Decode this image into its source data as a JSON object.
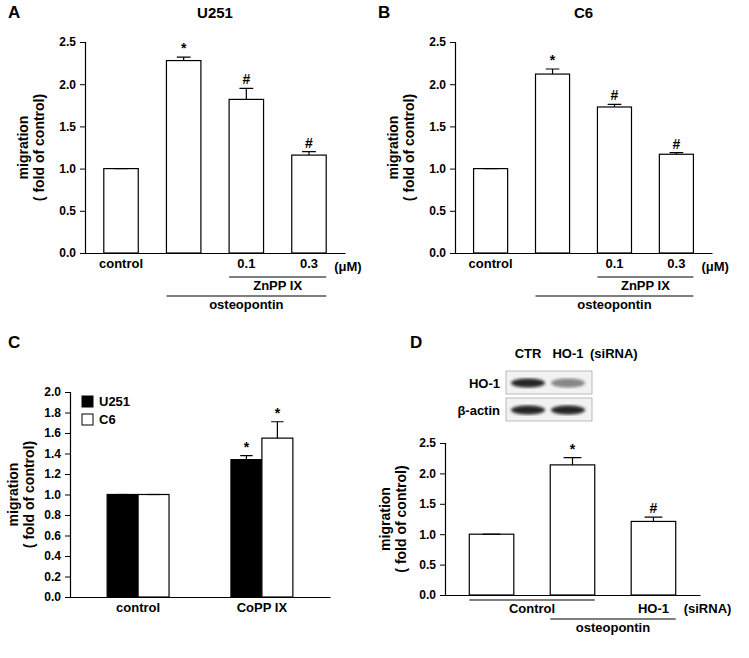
{
  "chart_data": [
    {
      "panel": "A",
      "type": "bar",
      "title": "U251",
      "ylabel": [
        "migration",
        "( fold of control)"
      ],
      "categories": [
        "control",
        null,
        "0.1",
        "0.3"
      ],
      "values": [
        1.0,
        2.28,
        1.82,
        1.16
      ],
      "errors": [
        0,
        0.04,
        0.13,
        0.04
      ],
      "significance": [
        null,
        "*",
        "#",
        "#"
      ],
      "color": "#ffffff",
      "ylim": [
        0,
        2.5
      ],
      "yticks": [
        {
          "value": 0,
          "label": "0.0"
        },
        0.5,
        {
          "value": 1,
          "label": "1.0"
        },
        1.5,
        {
          "value": 2,
          "label": "2.0"
        },
        2.5
      ],
      "groups": [
        [
          {
            "label": "ZnPP IX",
            "from": 2,
            "to": 3
          }
        ],
        [
          {
            "label": "osteopontin",
            "from": 1,
            "to": 3
          }
        ]
      ],
      "unit": "(μM)"
    },
    {
      "panel": "B",
      "type": "bar",
      "title": "C6",
      "ylabel": [
        "migration",
        "( fold of control)"
      ],
      "categories": [
        "control",
        null,
        "0.1",
        "0.3"
      ],
      "values": [
        1.0,
        2.12,
        1.73,
        1.17
      ],
      "errors": [
        0,
        0.06,
        0.03,
        0.02
      ],
      "significance": [
        null,
        "*",
        "#",
        "#"
      ],
      "color": "#ffffff",
      "ylim": [
        0,
        2.5
      ],
      "yticks": [
        {
          "value": 0,
          "label": "0.0"
        },
        0.5,
        {
          "value": 1,
          "label": "1.0"
        },
        1.5,
        {
          "value": 2,
          "label": "2.0"
        },
        2.5
      ],
      "groups": [
        [
          {
            "label": "ZnPP IX",
            "from": 2,
            "to": 3
          }
        ],
        [
          {
            "label": "osteopontin",
            "from": 1,
            "to": 3
          }
        ]
      ],
      "unit": "(μM)"
    },
    {
      "panel": "C",
      "type": "bar",
      "ylabel": [
        "migration",
        "( fold of control)"
      ],
      "categories": [
        "control",
        "CoPP IX"
      ],
      "series": [
        {
          "name": "U251",
          "color": "#000000",
          "values": [
            1.0,
            1.34
          ],
          "errors": [
            0,
            0.04
          ],
          "significance": [
            null,
            "*"
          ]
        },
        {
          "name": "C6",
          "color": "#ffffff",
          "values": [
            1.0,
            1.55
          ],
          "errors": [
            0,
            0.16
          ],
          "significance": [
            null,
            "*"
          ]
        }
      ],
      "ylim": [
        0,
        2.0
      ],
      "yticks": [
        {
          "value": 0,
          "label": "0.0"
        },
        0.2,
        0.4,
        0.6,
        0.8,
        {
          "value": 1,
          "label": "1.0"
        },
        1.2,
        1.4,
        1.6,
        1.8,
        {
          "value": 2,
          "label": "2.0"
        }
      ],
      "legend": "top-left"
    },
    {
      "panel": "D",
      "type": "bar",
      "ylabel": [
        "migration",
        "( fold of control)"
      ],
      "categories": [
        null,
        null,
        null
      ],
      "values": [
        1.0,
        2.14,
        1.21
      ],
      "errors": [
        0,
        0.12,
        0.07
      ],
      "significance": [
        null,
        "*",
        "#"
      ],
      "color": "#ffffff",
      "ylim": [
        0,
        2.5
      ],
      "yticks": [
        {
          "value": 0,
          "label": "0.0"
        },
        0.5,
        {
          "value": 1,
          "label": "1.0"
        },
        1.5,
        {
          "value": 2,
          "label": "2.0"
        },
        2.5
      ],
      "groups": [
        [
          {
            "label": "Control",
            "from": 0,
            "to": 1
          },
          {
            "label": "HO-1",
            "from": 2,
            "to": 2
          }
        ],
        [
          {
            "label": "osteopontin",
            "from": 1,
            "to": 2
          }
        ]
      ],
      "unit": "(siRNA)",
      "blot": {
        "columns": [
          "CTR",
          "HO-1"
        ],
        "unit": "(siRNA)",
        "rows": [
          "HO-1",
          "β-actin"
        ]
      }
    }
  ]
}
